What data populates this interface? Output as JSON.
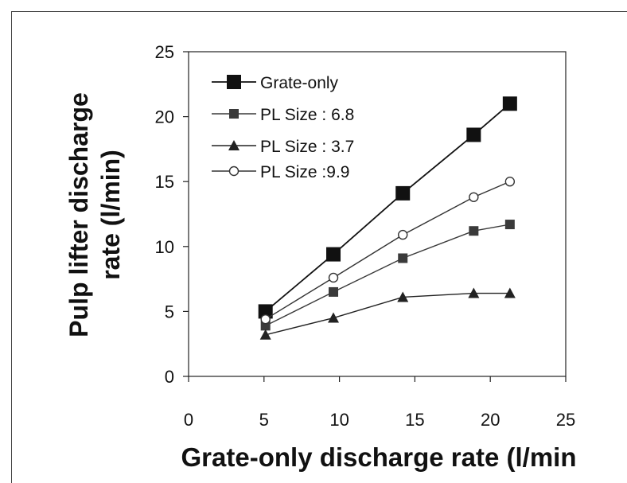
{
  "chart_data": {
    "type": "line",
    "title": "",
    "xlabel": "Grate-only discharge rate (l/min",
    "ylabel_line1": "Pulp lifter discharge",
    "ylabel_line2": "rate (l/min)",
    "xlim": [
      0,
      25
    ],
    "ylim": [
      0,
      25
    ],
    "xticks": [
      0,
      5,
      10,
      15,
      20,
      25
    ],
    "yticks": [
      0,
      5,
      10,
      15,
      20,
      25
    ],
    "grid": false,
    "legend_position": "top-left",
    "series": [
      {
        "name": "Grate-only",
        "marker": "square-large",
        "x": [
          5.1,
          9.6,
          14.2,
          18.9,
          21.3
        ],
        "y": [
          5.0,
          9.4,
          14.1,
          18.6,
          21.0
        ]
      },
      {
        "name": "PL Size : 6.8",
        "marker": "square-small",
        "x": [
          5.1,
          9.6,
          14.2,
          18.9,
          21.3
        ],
        "y": [
          3.9,
          6.5,
          9.1,
          11.2,
          11.7
        ]
      },
      {
        "name": "PL Size : 3.7",
        "marker": "triangle",
        "x": [
          5.1,
          9.6,
          14.2,
          18.9,
          21.3
        ],
        "y": [
          3.2,
          4.5,
          6.1,
          6.4,
          6.4
        ]
      },
      {
        "name": "PL Size :9.9",
        "marker": "circle-open",
        "x": [
          5.1,
          9.6,
          14.2,
          18.9,
          21.3
        ],
        "y": [
          4.4,
          7.6,
          10.9,
          13.8,
          15.0
        ]
      }
    ]
  },
  "colors": {
    "grate_only": "#111111",
    "pl_6_8": "#3a3a3a",
    "pl_3_7": "#222222",
    "pl_9_9": "#333333",
    "axis": "#222222"
  }
}
